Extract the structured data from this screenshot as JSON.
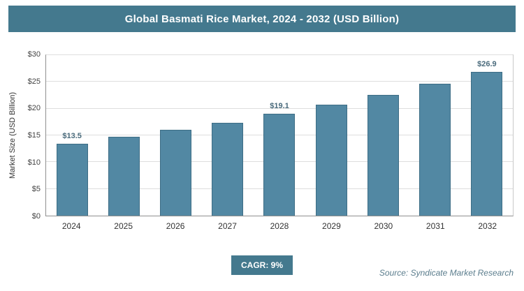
{
  "header": {
    "title": "Global Basmati Rice Market, 2024 - 2032 (USD Billion)"
  },
  "footer": {
    "cagr_label": "CAGR: 9%",
    "source": "Source: Syndicate Market Research"
  },
  "colors": {
    "header_bg": "#44798e",
    "badge_bg": "#44798e",
    "bar_fill": "#5288a3",
    "bar_border": "#3d6d85",
    "data_label_color": "#4a6b7c",
    "gridline": "#dedede"
  },
  "chart_data": {
    "type": "bar",
    "title": "Global Basmati Rice Market, 2024 - 2032 (USD Billion)",
    "categories": [
      "2024",
      "2025",
      "2026",
      "2027",
      "2028",
      "2029",
      "2030",
      "2031",
      "2032"
    ],
    "values": [
      13.5,
      14.7,
      16.0,
      17.4,
      19.1,
      20.8,
      22.6,
      24.7,
      26.9
    ],
    "data_labels": [
      "$13.5",
      null,
      null,
      null,
      "$19.1",
      null,
      null,
      null,
      "$26.9"
    ],
    "xlabel": "",
    "ylabel": "Market Size (USD Billion)",
    "ylim": [
      0,
      30
    ],
    "yticks": [
      0,
      5,
      10,
      15,
      20,
      25,
      30
    ],
    "ytick_labels": [
      "$0",
      "$5",
      "$10",
      "$15",
      "$20",
      "$25",
      "$30"
    ],
    "grid": true,
    "legend": false
  }
}
